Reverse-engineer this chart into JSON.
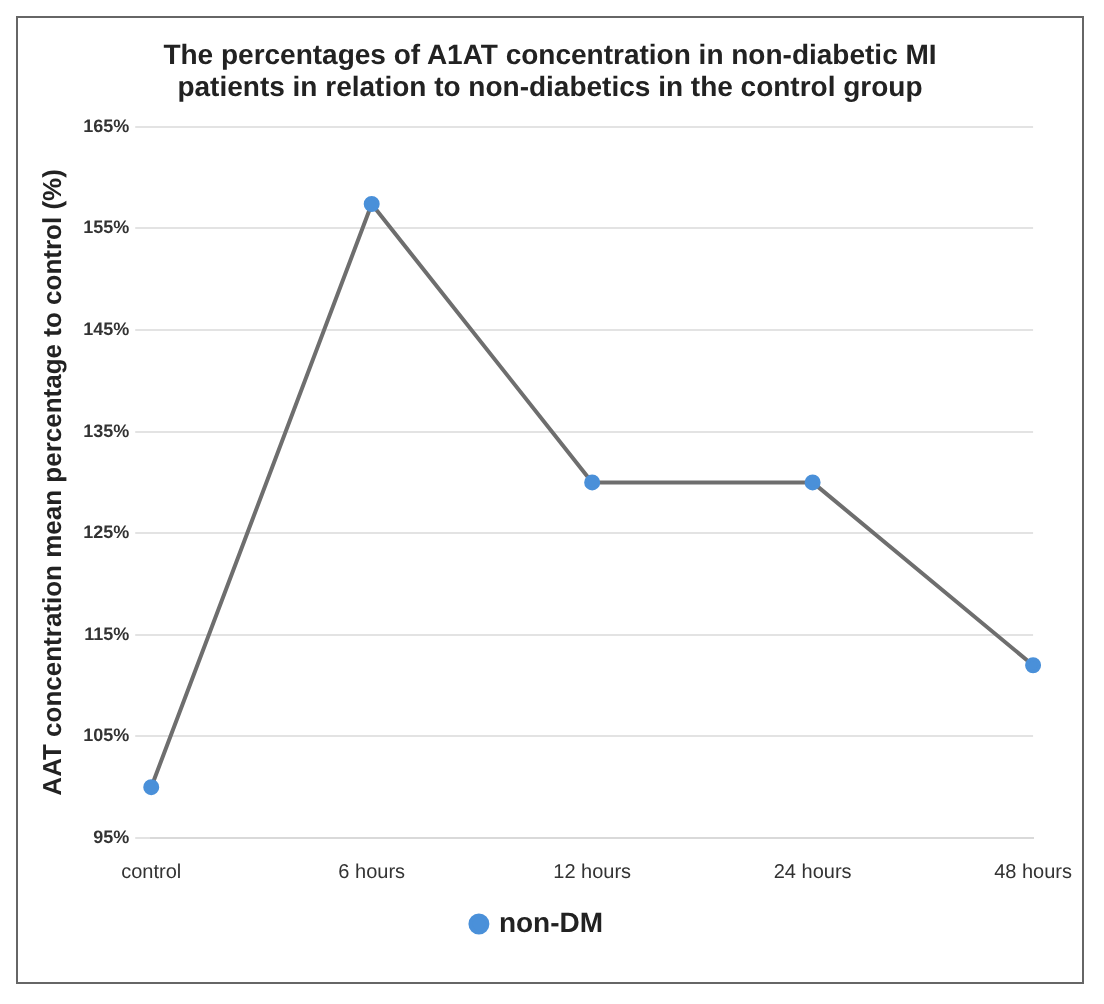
{
  "chart_data": {
    "type": "line",
    "title": "The percentages of A1AT concentration in non-diabetic MI patients in relation to non-diabetics in the control group",
    "ylabel": "AAT concentration mean percentage to control (%)",
    "categories": [
      "control",
      "6 hours",
      "12 hours",
      "24 hours",
      "48 hours"
    ],
    "series": [
      {
        "name": "non-DM",
        "color": "#6e6e6e",
        "values": [
          100,
          157.4,
          130,
          130,
          112
        ]
      }
    ],
    "ylim": [
      95,
      165
    ],
    "yticks": [
      {
        "value": 95,
        "label": "95%"
      },
      {
        "value": 105,
        "label": "105%"
      },
      {
        "value": 115,
        "label": "115%"
      },
      {
        "value": 125,
        "label": "125%"
      },
      {
        "value": 135,
        "label": "135%"
      },
      {
        "value": 145,
        "label": "145%"
      },
      {
        "value": 155,
        "label": "155%"
      },
      {
        "value": 165,
        "label": "165%"
      }
    ],
    "grid": "y",
    "legend": "bottom",
    "marker": "circle",
    "line_style": "solid"
  }
}
